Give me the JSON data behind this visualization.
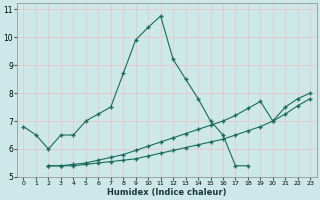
{
  "xlabel": "Humidex (Indice chaleur)",
  "bg_color": "#cce8e8",
  "grid_color": "#e8c8c8",
  "line_color": "#1a6b5a",
  "xlim": [
    -0.5,
    23.5
  ],
  "ylim": [
    5,
    11.2
  ],
  "xticks": [
    0,
    1,
    2,
    3,
    4,
    5,
    6,
    7,
    8,
    9,
    10,
    11,
    12,
    13,
    14,
    15,
    16,
    17,
    18,
    19,
    20,
    21,
    22,
    23
  ],
  "yticks": [
    5,
    6,
    7,
    8,
    9,
    10,
    11
  ],
  "line1_x": [
    0,
    1,
    2,
    3,
    4,
    5,
    6,
    7,
    8,
    9,
    10,
    11,
    12,
    13,
    14,
    15,
    16,
    17,
    18
  ],
  "line1_y": [
    6.8,
    6.5,
    6.0,
    6.5,
    6.5,
    7.0,
    7.25,
    7.5,
    8.7,
    9.9,
    10.35,
    10.75,
    9.2,
    8.5,
    7.8,
    7.0,
    6.5,
    5.4,
    5.4
  ],
  "line2_x": [
    2,
    3,
    4,
    5,
    6,
    7,
    8,
    9,
    10,
    11,
    12,
    13,
    14,
    15,
    16,
    17,
    18,
    19,
    20,
    21,
    22,
    23
  ],
  "line2_y": [
    5.4,
    5.4,
    5.4,
    5.45,
    5.5,
    5.55,
    5.6,
    5.65,
    5.75,
    5.85,
    5.95,
    6.05,
    6.15,
    6.25,
    6.35,
    6.5,
    6.65,
    6.8,
    7.0,
    7.25,
    7.55,
    7.8
  ],
  "line3_x": [
    2,
    3,
    4,
    5,
    6,
    7,
    8,
    9,
    10,
    11,
    12,
    13,
    14,
    15,
    16,
    17,
    18,
    19,
    20,
    21,
    22,
    23
  ],
  "line3_y": [
    5.4,
    5.4,
    5.45,
    5.5,
    5.6,
    5.7,
    5.8,
    5.95,
    6.1,
    6.25,
    6.4,
    6.55,
    6.7,
    6.85,
    7.0,
    7.2,
    7.45,
    7.7,
    7.0,
    7.5,
    7.8,
    8.0
  ]
}
